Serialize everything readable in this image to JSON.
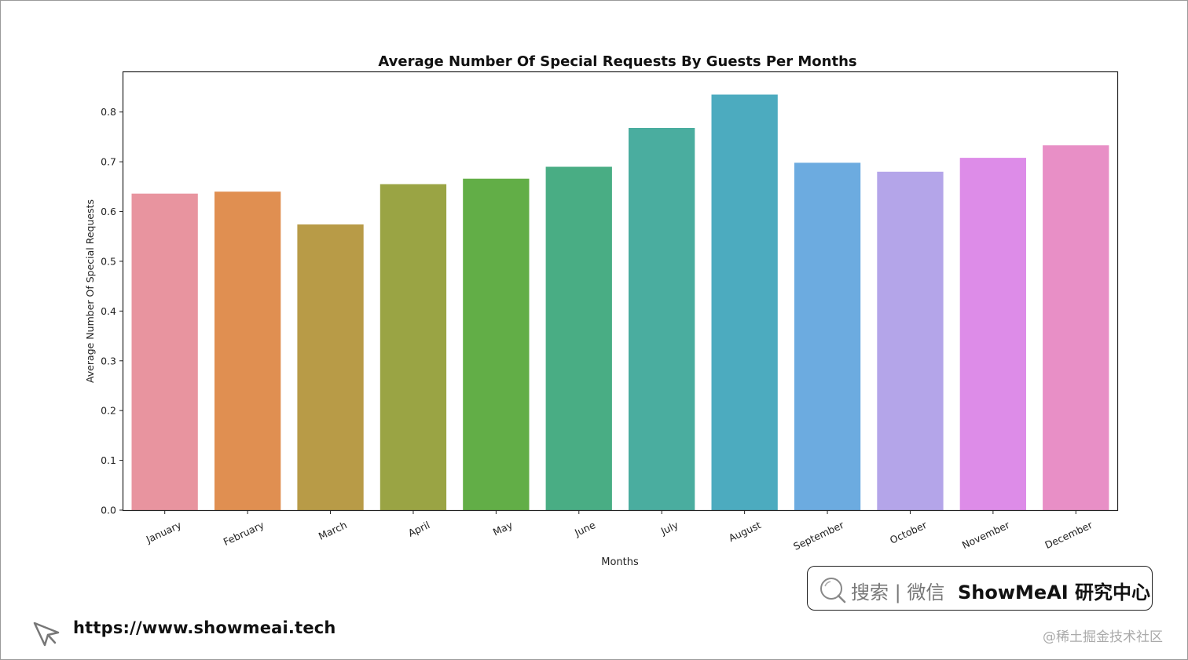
{
  "chart_data": {
    "type": "bar",
    "title": "Average Number Of Special Requests By Guests Per Months",
    "xlabel": "Months",
    "ylabel": "Average Number Of Special Requests",
    "ylim": [
      0,
      0.88
    ],
    "yticks": [
      "0.0",
      "0.1",
      "0.2",
      "0.3",
      "0.4",
      "0.5",
      "0.6",
      "0.7",
      "0.8"
    ],
    "categories": [
      "January",
      "February",
      "March",
      "April",
      "May",
      "June",
      "July",
      "August",
      "September",
      "October",
      "November",
      "December"
    ],
    "values": [
      0.636,
      0.64,
      0.574,
      0.655,
      0.666,
      0.69,
      0.768,
      0.835,
      0.698,
      0.68,
      0.708,
      0.733
    ],
    "colors": [
      "#e8949f",
      "#e08f51",
      "#b89b47",
      "#9aa444",
      "#62ae47",
      "#49ad84",
      "#4aad9f",
      "#4cabbf",
      "#6cabe0",
      "#b4a5e9",
      "#dd8ce8",
      "#e88fc6"
    ],
    "grid": false,
    "legend": "none"
  },
  "footer": {
    "url": "https://www.showmeai.tech",
    "search_prefix": "搜索 | 微信",
    "search_brand": "ShowMeAI 研究中心",
    "watermark": "@稀土掘金技术社区"
  }
}
